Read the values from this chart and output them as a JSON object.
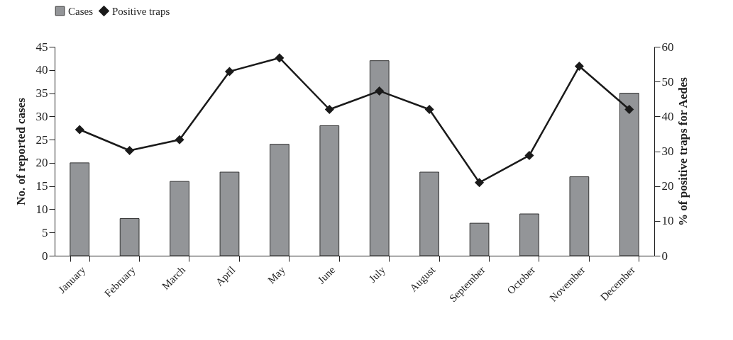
{
  "chart_data": {
    "type": "bar",
    "ylabel": "No. of reported cases",
    "y2label": "% of positive traps for Aedes",
    "categories": [
      "January",
      "February",
      "March",
      "April",
      "May",
      "June",
      "July",
      "August",
      "September",
      "October",
      "November",
      "December"
    ],
    "series": [
      {
        "name": "Cases",
        "color": "#939598",
        "values": [
          20,
          8,
          16,
          18,
          24,
          28,
          42,
          18,
          7,
          9,
          17,
          35
        ]
      },
      {
        "name": "Positive traps",
        "type": "line",
        "axis": "y2",
        "color": "#1a1a1a",
        "marker": "diamond",
        "values": [
          36.2,
          30.2,
          33.3,
          52.9,
          56.8,
          42.0,
          47.3,
          42.0,
          21.0,
          28.8,
          54.4,
          42.0
        ]
      }
    ],
    "ylim": [
      0,
      45
    ],
    "yticks": [
      0,
      5,
      10,
      15,
      20,
      25,
      30,
      35,
      40,
      45
    ],
    "y2lim": [
      0,
      60
    ],
    "y2ticks": [
      0,
      10,
      20,
      30,
      40,
      50,
      60
    ],
    "grid": false,
    "legend": "top"
  }
}
